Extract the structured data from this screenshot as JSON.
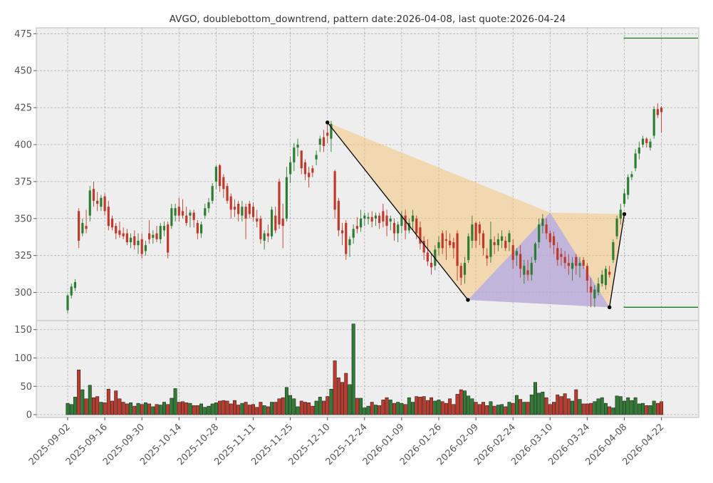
{
  "chart_data": {
    "type": "candlestick",
    "title": "AVGO, doublebottom_downtrend, pattern date:2026-04-08, last quote:2026-04-24",
    "grid": true,
    "price_axis": {
      "ylim": [
        281,
        479
      ],
      "ticks": [
        300,
        325,
        350,
        375,
        400,
        425,
        450,
        475
      ]
    },
    "volume_axis": {
      "ylim": [
        -5,
        166
      ],
      "ticks": [
        0,
        50,
        100,
        150
      ]
    },
    "x_ticks": [
      "2025-09-02",
      "2025-09-16",
      "2025-09-30",
      "2025-10-14",
      "2025-10-28",
      "2025-11-11",
      "2025-11-25",
      "2025-12-10",
      "2025-12-24",
      "2026-01-09",
      "2026-01-26",
      "2026-02-09",
      "2026-02-24",
      "2026-03-10",
      "2026-03-24",
      "2026-04-08",
      "2026-04-22"
    ],
    "colors": {
      "up": "#2e7d32",
      "down": "#c0392b",
      "pattern_fill_1": "#f5c77e",
      "pattern_fill_2": "#9999ff",
      "level_line": "#1a7a1a",
      "pattern_line": "#000000"
    },
    "candles": [
      {
        "o": 288,
        "h": 299,
        "l": 286,
        "c": 298,
        "v": 20
      },
      {
        "o": 298,
        "h": 306,
        "l": 296,
        "c": 304,
        "v": 18
      },
      {
        "o": 303,
        "h": 309,
        "l": 301,
        "c": 307,
        "v": 31
      },
      {
        "o": 355,
        "h": 357,
        "l": 330,
        "c": 335,
        "v": 79
      },
      {
        "o": 340,
        "h": 350,
        "l": 338,
        "c": 347,
        "v": 44
      },
      {
        "o": 345,
        "h": 356,
        "l": 340,
        "c": 343,
        "v": 28
      },
      {
        "o": 352,
        "h": 372,
        "l": 348,
        "c": 369,
        "v": 52
      },
      {
        "o": 370,
        "h": 375,
        "l": 358,
        "c": 362,
        "v": 30
      },
      {
        "o": 362,
        "h": 368,
        "l": 355,
        "c": 360,
        "v": 32
      },
      {
        "o": 358,
        "h": 366,
        "l": 355,
        "c": 364,
        "v": 22
      },
      {
        "o": 365,
        "h": 367,
        "l": 352,
        "c": 355,
        "v": 21
      },
      {
        "o": 358,
        "h": 362,
        "l": 342,
        "c": 345,
        "v": 45
      },
      {
        "o": 350,
        "h": 352,
        "l": 342,
        "c": 344,
        "v": 24
      },
      {
        "o": 345,
        "h": 347,
        "l": 336,
        "c": 340,
        "v": 42
      },
      {
        "o": 342,
        "h": 348,
        "l": 337,
        "c": 339,
        "v": 28
      },
      {
        "o": 340,
        "h": 344,
        "l": 336,
        "c": 338,
        "v": 22
      },
      {
        "o": 340,
        "h": 343,
        "l": 332,
        "c": 334,
        "v": 19
      },
      {
        "o": 334,
        "h": 340,
        "l": 330,
        "c": 337,
        "v": 21
      },
      {
        "o": 338,
        "h": 342,
        "l": 329,
        "c": 332,
        "v": 15
      },
      {
        "o": 332,
        "h": 340,
        "l": 326,
        "c": 335,
        "v": 20
      },
      {
        "o": 336,
        "h": 340,
        "l": 323,
        "c": 326,
        "v": 18
      },
      {
        "o": 328,
        "h": 335,
        "l": 325,
        "c": 332,
        "v": 21
      },
      {
        "o": 340,
        "h": 349,
        "l": 333,
        "c": 336,
        "v": 19
      },
      {
        "o": 337,
        "h": 342,
        "l": 333,
        "c": 339,
        "v": 14
      },
      {
        "o": 340,
        "h": 345,
        "l": 334,
        "c": 336,
        "v": 18
      },
      {
        "o": 336,
        "h": 347,
        "l": 333,
        "c": 345,
        "v": 17
      },
      {
        "o": 342,
        "h": 348,
        "l": 338,
        "c": 345,
        "v": 22
      },
      {
        "o": 346,
        "h": 348,
        "l": 323,
        "c": 327,
        "v": 18
      },
      {
        "o": 345,
        "h": 360,
        "l": 343,
        "c": 357,
        "v": 29
      },
      {
        "o": 352,
        "h": 360,
        "l": 348,
        "c": 357,
        "v": 46
      },
      {
        "o": 358,
        "h": 364,
        "l": 348,
        "c": 352,
        "v": 22
      },
      {
        "o": 355,
        "h": 363,
        "l": 350,
        "c": 352,
        "v": 23
      },
      {
        "o": 352,
        "h": 358,
        "l": 345,
        "c": 347,
        "v": 21
      },
      {
        "o": 352,
        "h": 356,
        "l": 344,
        "c": 354,
        "v": 20
      },
      {
        "o": 354,
        "h": 356,
        "l": 344,
        "c": 349,
        "v": 16
      },
      {
        "o": 347,
        "h": 349,
        "l": 336,
        "c": 340,
        "v": 16
      },
      {
        "o": 340,
        "h": 348,
        "l": 337,
        "c": 346,
        "v": 19
      },
      {
        "o": 352,
        "h": 360,
        "l": 350,
        "c": 357,
        "v": 13
      },
      {
        "o": 357,
        "h": 364,
        "l": 354,
        "c": 361,
        "v": 15
      },
      {
        "o": 362,
        "h": 374,
        "l": 360,
        "c": 372,
        "v": 19
      },
      {
        "o": 375,
        "h": 386,
        "l": 370,
        "c": 385,
        "v": 21
      },
      {
        "o": 386,
        "h": 387,
        "l": 368,
        "c": 372,
        "v": 24
      },
      {
        "o": 378,
        "h": 380,
        "l": 364,
        "c": 370,
        "v": 25
      },
      {
        "o": 372,
        "h": 374,
        "l": 360,
        "c": 362,
        "v": 24
      },
      {
        "o": 365,
        "h": 367,
        "l": 350,
        "c": 356,
        "v": 19
      },
      {
        "o": 358,
        "h": 363,
        "l": 351,
        "c": 356,
        "v": 25
      },
      {
        "o": 360,
        "h": 362,
        "l": 348,
        "c": 353,
        "v": 17
      },
      {
        "o": 352,
        "h": 362,
        "l": 348,
        "c": 358,
        "v": 20
      },
      {
        "o": 358,
        "h": 360,
        "l": 336,
        "c": 350,
        "v": 22
      },
      {
        "o": 360,
        "h": 362,
        "l": 350,
        "c": 353,
        "v": 17
      },
      {
        "o": 358,
        "h": 361,
        "l": 348,
        "c": 351,
        "v": 18
      },
      {
        "o": 350,
        "h": 356,
        "l": 344,
        "c": 348,
        "v": 13
      },
      {
        "o": 350,
        "h": 352,
        "l": 333,
        "c": 336,
        "v": 22
      },
      {
        "o": 335,
        "h": 342,
        "l": 329,
        "c": 340,
        "v": 16
      },
      {
        "o": 340,
        "h": 346,
        "l": 334,
        "c": 338,
        "v": 14
      },
      {
        "o": 338,
        "h": 358,
        "l": 336,
        "c": 356,
        "v": 22
      },
      {
        "o": 352,
        "h": 358,
        "l": 340,
        "c": 342,
        "v": 22
      },
      {
        "o": 375,
        "h": 377,
        "l": 343,
        "c": 346,
        "v": 28
      },
      {
        "o": 350,
        "h": 360,
        "l": 330,
        "c": 345,
        "v": 30
      },
      {
        "o": 350,
        "h": 385,
        "l": 348,
        "c": 378,
        "v": 48
      },
      {
        "o": 380,
        "h": 392,
        "l": 374,
        "c": 388,
        "v": 34
      },
      {
        "o": 388,
        "h": 401,
        "l": 382,
        "c": 398,
        "v": 28
      },
      {
        "o": 398,
        "h": 404,
        "l": 392,
        "c": 400,
        "v": 14
      },
      {
        "o": 396,
        "h": 396,
        "l": 380,
        "c": 384,
        "v": 24
      },
      {
        "o": 388,
        "h": 390,
        "l": 376,
        "c": 380,
        "v": 22
      },
      {
        "o": 381,
        "h": 385,
        "l": 371,
        "c": 378,
        "v": 21
      },
      {
        "o": 384,
        "h": 386,
        "l": 378,
        "c": 381,
        "v": 15
      },
      {
        "o": 390,
        "h": 396,
        "l": 386,
        "c": 393,
        "v": 24
      },
      {
        "o": 400,
        "h": 406,
        "l": 395,
        "c": 404,
        "v": 31
      },
      {
        "o": 405,
        "h": 410,
        "l": 395,
        "c": 399,
        "v": 24
      },
      {
        "o": 408,
        "h": 415,
        "l": 401,
        "c": 406,
        "v": 32
      },
      {
        "o": 404,
        "h": 416,
        "l": 395,
        "c": 414,
        "v": 45
      },
      {
        "o": 382,
        "h": 383,
        "l": 350,
        "c": 356,
        "v": 95
      },
      {
        "o": 362,
        "h": 364,
        "l": 338,
        "c": 342,
        "v": 65
      },
      {
        "o": 342,
        "h": 347,
        "l": 332,
        "c": 340,
        "v": 57
      },
      {
        "o": 347,
        "h": 349,
        "l": 322,
        "c": 326,
        "v": 73
      },
      {
        "o": 332,
        "h": 338,
        "l": 324,
        "c": 336,
        "v": 53
      },
      {
        "o": 337,
        "h": 346,
        "l": 333,
        "c": 343,
        "v": 160
      },
      {
        "o": 345,
        "h": 351,
        "l": 340,
        "c": 343,
        "v": 29
      },
      {
        "o": 344,
        "h": 356,
        "l": 341,
        "c": 350,
        "v": 29
      },
      {
        "o": 350,
        "h": 354,
        "l": 345,
        "c": 352,
        "v": 12
      },
      {
        "o": 350,
        "h": 354,
        "l": 346,
        "c": 351,
        "v": 15
      },
      {
        "o": 351,
        "h": 355,
        "l": 344,
        "c": 348,
        "v": 22
      },
      {
        "o": 350,
        "h": 354,
        "l": 345,
        "c": 352,
        "v": 17
      },
      {
        "o": 352,
        "h": 354,
        "l": 343,
        "c": 347,
        "v": 16
      },
      {
        "o": 355,
        "h": 360,
        "l": 344,
        "c": 348,
        "v": 26
      },
      {
        "o": 352,
        "h": 356,
        "l": 338,
        "c": 345,
        "v": 30
      },
      {
        "o": 348,
        "h": 352,
        "l": 342,
        "c": 350,
        "v": 26
      },
      {
        "o": 347,
        "h": 350,
        "l": 335,
        "c": 340,
        "v": 20
      },
      {
        "o": 340,
        "h": 348,
        "l": 334,
        "c": 346,
        "v": 22
      },
      {
        "o": 345,
        "h": 355,
        "l": 340,
        "c": 352,
        "v": 20
      },
      {
        "o": 352,
        "h": 356,
        "l": 336,
        "c": 342,
        "v": 18
      },
      {
        "o": 342,
        "h": 350,
        "l": 340,
        "c": 347,
        "v": 30
      },
      {
        "o": 348,
        "h": 356,
        "l": 342,
        "c": 352,
        "v": 22
      },
      {
        "o": 350,
        "h": 352,
        "l": 336,
        "c": 340,
        "v": 32
      },
      {
        "o": 344,
        "h": 348,
        "l": 329,
        "c": 333,
        "v": 31
      },
      {
        "o": 335,
        "h": 338,
        "l": 322,
        "c": 327,
        "v": 32
      },
      {
        "o": 327,
        "h": 336,
        "l": 318,
        "c": 321,
        "v": 25
      },
      {
        "o": 320,
        "h": 326,
        "l": 312,
        "c": 317,
        "v": 30
      },
      {
        "o": 318,
        "h": 332,
        "l": 315,
        "c": 329,
        "v": 24
      },
      {
        "o": 330,
        "h": 338,
        "l": 325,
        "c": 334,
        "v": 26
      },
      {
        "o": 340,
        "h": 342,
        "l": 326,
        "c": 330,
        "v": 23
      },
      {
        "o": 336,
        "h": 342,
        "l": 322,
        "c": 335,
        "v": 20
      },
      {
        "o": 335,
        "h": 340,
        "l": 330,
        "c": 332,
        "v": 28
      },
      {
        "o": 334,
        "h": 337,
        "l": 323,
        "c": 330,
        "v": 18
      },
      {
        "o": 340,
        "h": 342,
        "l": 308,
        "c": 318,
        "v": 36
      },
      {
        "o": 318,
        "h": 320,
        "l": 305,
        "c": 310,
        "v": 44
      },
      {
        "o": 312,
        "h": 324,
        "l": 306,
        "c": 320,
        "v": 42
      },
      {
        "o": 322,
        "h": 340,
        "l": 320,
        "c": 338,
        "v": 33
      },
      {
        "o": 335,
        "h": 352,
        "l": 330,
        "c": 346,
        "v": 28
      },
      {
        "o": 347,
        "h": 348,
        "l": 330,
        "c": 335,
        "v": 22
      },
      {
        "o": 346,
        "h": 348,
        "l": 332,
        "c": 340,
        "v": 18
      },
      {
        "o": 340,
        "h": 342,
        "l": 325,
        "c": 330,
        "v": 22
      },
      {
        "o": 325,
        "h": 330,
        "l": 318,
        "c": 323,
        "v": 16
      },
      {
        "o": 324,
        "h": 348,
        "l": 320,
        "c": 336,
        "v": 23
      },
      {
        "o": 334,
        "h": 338,
        "l": 326,
        "c": 332,
        "v": 15
      },
      {
        "o": 332,
        "h": 340,
        "l": 328,
        "c": 336,
        "v": 17
      },
      {
        "o": 335,
        "h": 342,
        "l": 330,
        "c": 338,
        "v": 18
      },
      {
        "o": 335,
        "h": 338,
        "l": 328,
        "c": 330,
        "v": 14
      },
      {
        "o": 334,
        "h": 342,
        "l": 328,
        "c": 340,
        "v": 22
      },
      {
        "o": 332,
        "h": 336,
        "l": 316,
        "c": 322,
        "v": 20
      },
      {
        "o": 325,
        "h": 330,
        "l": 318,
        "c": 328,
        "v": 34
      },
      {
        "o": 326,
        "h": 332,
        "l": 310,
        "c": 316,
        "v": 27
      },
      {
        "o": 312,
        "h": 322,
        "l": 306,
        "c": 318,
        "v": 22
      },
      {
        "o": 315,
        "h": 322,
        "l": 308,
        "c": 312,
        "v": 22
      },
      {
        "o": 312,
        "h": 324,
        "l": 308,
        "c": 320,
        "v": 35
      },
      {
        "o": 322,
        "h": 334,
        "l": 320,
        "c": 333,
        "v": 57
      },
      {
        "o": 334,
        "h": 350,
        "l": 330,
        "c": 346,
        "v": 38
      },
      {
        "o": 345,
        "h": 353,
        "l": 340,
        "c": 350,
        "v": 40
      },
      {
        "o": 346,
        "h": 350,
        "l": 336,
        "c": 340,
        "v": 30
      },
      {
        "o": 340,
        "h": 342,
        "l": 330,
        "c": 334,
        "v": 18
      },
      {
        "o": 338,
        "h": 341,
        "l": 326,
        "c": 332,
        "v": 22
      },
      {
        "o": 330,
        "h": 334,
        "l": 318,
        "c": 322,
        "v": 35
      },
      {
        "o": 326,
        "h": 330,
        "l": 318,
        "c": 324,
        "v": 32
      },
      {
        "o": 324,
        "h": 328,
        "l": 316,
        "c": 320,
        "v": 37
      },
      {
        "o": 320,
        "h": 326,
        "l": 312,
        "c": 318,
        "v": 28
      },
      {
        "o": 316,
        "h": 324,
        "l": 308,
        "c": 320,
        "v": 24
      },
      {
        "o": 324,
        "h": 326,
        "l": 312,
        "c": 318,
        "v": 44
      },
      {
        "o": 318,
        "h": 324,
        "l": 310,
        "c": 320,
        "v": 27
      },
      {
        "o": 322,
        "h": 324,
        "l": 316,
        "c": 318,
        "v": 19
      },
      {
        "o": 318,
        "h": 320,
        "l": 300,
        "c": 308,
        "v": 19
      },
      {
        "o": 304,
        "h": 310,
        "l": 290,
        "c": 300,
        "v": 20
      },
      {
        "o": 296,
        "h": 305,
        "l": 290,
        "c": 302,
        "v": 23
      },
      {
        "o": 300,
        "h": 310,
        "l": 298,
        "c": 306,
        "v": 28
      },
      {
        "o": 306,
        "h": 315,
        "l": 304,
        "c": 312,
        "v": 30
      },
      {
        "o": 305,
        "h": 318,
        "l": 302,
        "c": 316,
        "v": 20
      },
      {
        "o": 314,
        "h": 318,
        "l": 310,
        "c": 312,
        "v": 14
      },
      {
        "o": 322,
        "h": 336,
        "l": 320,
        "c": 334,
        "v": 12
      },
      {
        "o": 338,
        "h": 352,
        "l": 336,
        "c": 350,
        "v": 33
      },
      {
        "o": 350,
        "h": 360,
        "l": 346,
        "c": 356,
        "v": 32
      },
      {
        "o": 360,
        "h": 370,
        "l": 358,
        "c": 367,
        "v": 24
      },
      {
        "o": 366,
        "h": 380,
        "l": 363,
        "c": 378,
        "v": 30
      },
      {
        "o": 378,
        "h": 382,
        "l": 376,
        "c": 380,
        "v": 25
      },
      {
        "o": 384,
        "h": 397,
        "l": 382,
        "c": 394,
        "v": 30
      },
      {
        "o": 394,
        "h": 402,
        "l": 390,
        "c": 398,
        "v": 19
      },
      {
        "o": 400,
        "h": 406,
        "l": 398,
        "c": 404,
        "v": 20
      },
      {
        "o": 404,
        "h": 405,
        "l": 398,
        "c": 401,
        "v": 16
      },
      {
        "o": 398,
        "h": 404,
        "l": 396,
        "c": 402,
        "v": 16
      },
      {
        "o": 406,
        "h": 426,
        "l": 404,
        "c": 424,
        "v": 24
      },
      {
        "o": 424,
        "h": 428,
        "l": 418,
        "c": 420,
        "v": 20
      },
      {
        "o": 425,
        "h": 426,
        "l": 408,
        "c": 422,
        "v": 23
      }
    ],
    "pattern": {
      "points": [
        {
          "date": "2025-12-10",
          "price": 415
        },
        {
          "date": "2026-02-06",
          "price": 295
        },
        {
          "date": "2026-04-02",
          "price": 290
        },
        {
          "date": "2026-04-08",
          "price": 353
        }
      ],
      "neckline": {
        "date": "2026-03-10",
        "price": 354
      },
      "resistance_level": 472,
      "support_level": 290
    }
  }
}
